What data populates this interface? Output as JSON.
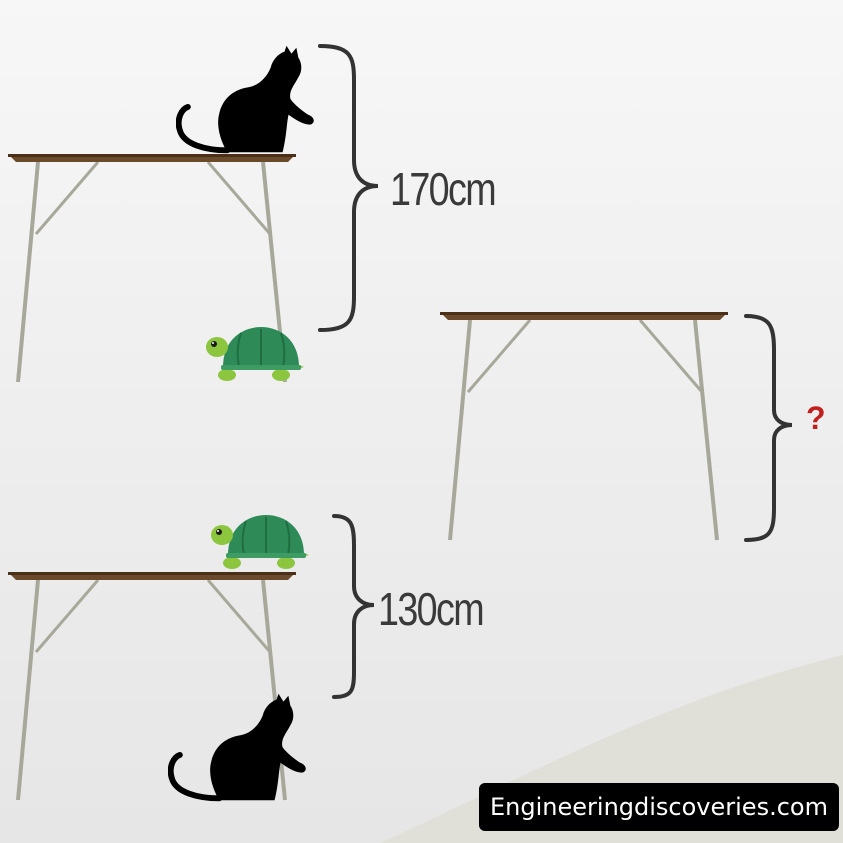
{
  "scene": {
    "top_measurement": "170cm",
    "bottom_measurement": "130cm",
    "unknown_measurement": "?"
  },
  "watermark": {
    "text": "Engineeringdiscoveries.com"
  },
  "colors": {
    "table_top": "#6b4a2b",
    "table_legs": "#a8a89a",
    "cat": "#000000",
    "turtle_shell": "#2e8b57",
    "turtle_skin": "#8cc63f",
    "brace": "#333333",
    "question": "#c0211f"
  },
  "icons": [
    "cat-icon",
    "turtle-icon",
    "table-icon",
    "brace-icon"
  ]
}
